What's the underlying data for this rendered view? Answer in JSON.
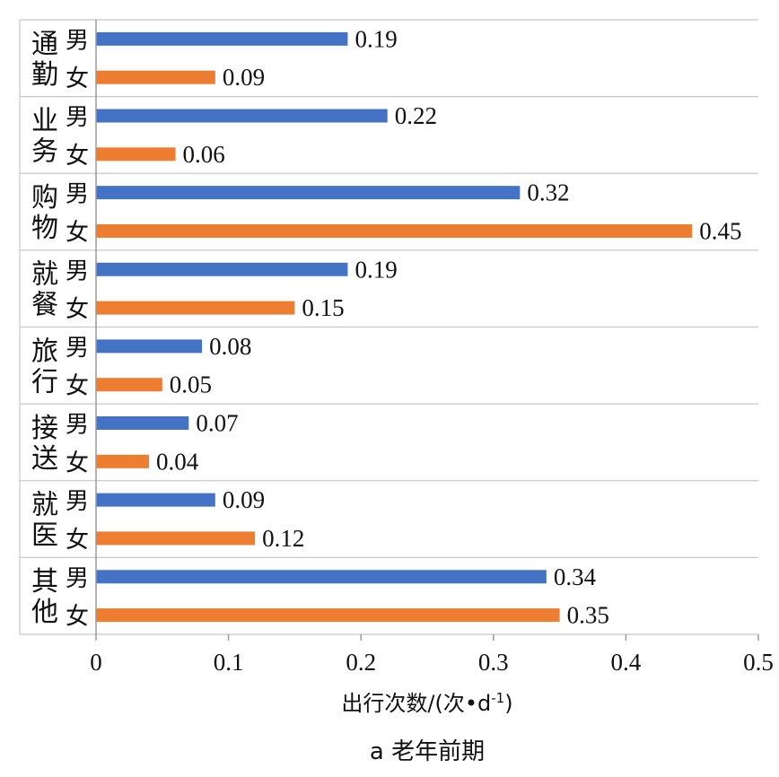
{
  "chart_data": {
    "type": "bar",
    "orientation": "horizontal",
    "groups": [
      {
        "label": "通勤",
        "bars": [
          {
            "sex": "男",
            "value": 0.19
          },
          {
            "sex": "女",
            "value": 0.09
          }
        ]
      },
      {
        "label": "业务",
        "bars": [
          {
            "sex": "男",
            "value": 0.22
          },
          {
            "sex": "女",
            "value": 0.06
          }
        ]
      },
      {
        "label": "购物",
        "bars": [
          {
            "sex": "男",
            "value": 0.32
          },
          {
            "sex": "女",
            "value": 0.45
          }
        ]
      },
      {
        "label": "就餐",
        "bars": [
          {
            "sex": "男",
            "value": 0.19
          },
          {
            "sex": "女",
            "value": 0.15
          }
        ]
      },
      {
        "label": "旅行",
        "bars": [
          {
            "sex": "男",
            "value": 0.08
          },
          {
            "sex": "女",
            "value": 0.05
          }
        ]
      },
      {
        "label": "接送",
        "bars": [
          {
            "sex": "男",
            "value": 0.07
          },
          {
            "sex": "女",
            "value": 0.04
          }
        ]
      },
      {
        "label": "就医",
        "bars": [
          {
            "sex": "男",
            "value": 0.09
          },
          {
            "sex": "女",
            "value": 0.12
          }
        ]
      },
      {
        "label": "其他",
        "bars": [
          {
            "sex": "男",
            "value": 0.34
          },
          {
            "sex": "女",
            "value": 0.35
          }
        ]
      }
    ],
    "xlim": [
      0,
      0.5
    ],
    "xticks": [
      "0",
      "0.1",
      "0.2",
      "0.3",
      "0.4",
      "0.5"
    ],
    "xlabel": "出行次数/(次•d-1)",
    "caption": "a 老年前期",
    "colors": {
      "男": "#4472C4",
      "女": "#ED7D31"
    },
    "gridlines": false
  }
}
